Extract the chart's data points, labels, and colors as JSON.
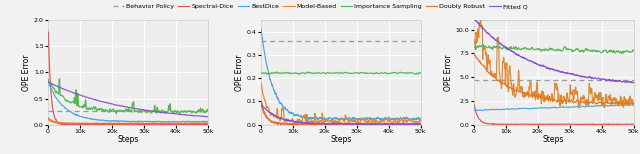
{
  "legend_labels": [
    "Behavior Policy",
    "Spectral-Dice",
    "BestDice",
    "Model-Based",
    "Importance Sampling",
    "Doubly Robust",
    "Fitted Q"
  ],
  "colors": {
    "behavior_policy": "#999999",
    "spectral_dice": "#e05555",
    "bestdice": "#4da6e0",
    "model_based": "#e08830",
    "importance_sampling": "#55b855",
    "doubly_robust": "#e07820",
    "fitted_q": "#8855cc"
  },
  "plot1": {
    "ylabel": "OPE Error",
    "xlabel": "Steps",
    "ylim": [
      0.0,
      2.0
    ],
    "yticks": [
      0.0,
      0.5,
      1.0,
      1.5,
      2.0
    ],
    "behavior_policy_level": 0.27
  },
  "plot2": {
    "ylabel": "OPE Error",
    "xlabel": "Steps",
    "ylim": [
      0.0,
      0.45
    ],
    "yticks": [
      0.0,
      0.1,
      0.2,
      0.3,
      0.4
    ],
    "behavior_policy_level": 0.358
  },
  "plot3": {
    "ylabel": "OPE Error",
    "xlabel": "Steps",
    "ylim": [
      0.0,
      11.0
    ],
    "yticks": [
      0.0,
      2.5,
      5.0,
      7.5,
      10.0
    ],
    "behavior_policy_level": 4.75
  },
  "fig_bg": "#f2f2f2",
  "ax_bg": "#eeeeee",
  "grid_color": "#ffffff"
}
